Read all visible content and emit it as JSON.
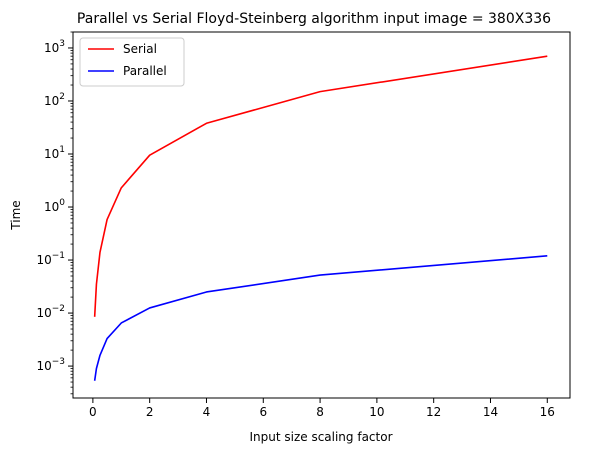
{
  "chart_data": {
    "type": "line",
    "title": "Parallel vs Serial Floyd-Steinberg algorithm input image = 380X336",
    "xlabel": "Input size scaling factor",
    "ylabel": "Time",
    "xlim": [
      -0.7,
      16.8
    ],
    "ylim": [
      0.00025,
      2000
    ],
    "yscale": "log",
    "xticks": [
      0,
      2,
      4,
      6,
      8,
      10,
      12,
      14,
      16
    ],
    "xtick_labels": [
      "0",
      "2",
      "4",
      "6",
      "8",
      "10",
      "12",
      "14",
      "16"
    ],
    "yticks": [
      0.001,
      0.01,
      0.1,
      1,
      10,
      100,
      1000
    ],
    "ytick_labels": [
      "10^-3",
      "10^-2",
      "10^-1",
      "10^0",
      "10^1",
      "10^2",
      "10^3"
    ],
    "legend_position": "top-left",
    "grid": false,
    "x": [
      0.0625,
      0.125,
      0.25,
      0.5,
      1,
      2,
      4,
      8,
      16
    ],
    "series": [
      {
        "name": "Serial",
        "color": "#ff0000",
        "values": [
          0.0085,
          0.035,
          0.14,
          0.58,
          2.3,
          9.5,
          38,
          150,
          700
        ]
      },
      {
        "name": "Parallel",
        "color": "#0000ff",
        "values": [
          0.00053,
          0.0009,
          0.0016,
          0.0033,
          0.0065,
          0.0125,
          0.025,
          0.052,
          0.12
        ]
      }
    ]
  }
}
